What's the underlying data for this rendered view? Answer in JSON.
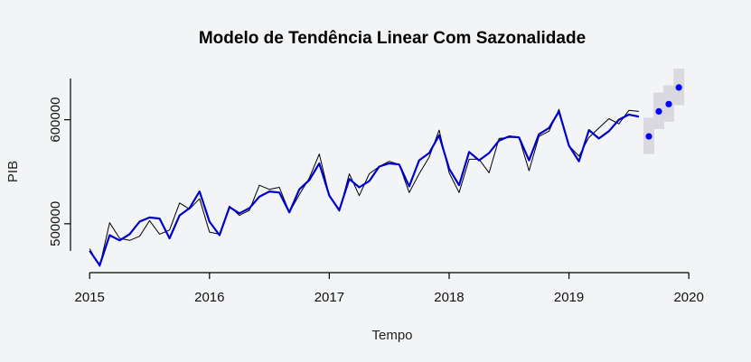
{
  "chart_data": {
    "type": "line",
    "title": "Modelo de Tendência Linear Com Sazonalidade",
    "xlabel": "Tempo",
    "ylabel": "PIB",
    "xlim": [
      2014.84,
      2020.21
    ],
    "ylim": [
      453000,
      650000
    ],
    "x_ticks": [
      2015,
      2016,
      2017,
      2018,
      2019,
      2020
    ],
    "x_tick_labels": [
      "2015",
      "2016",
      "2017",
      "2018",
      "2019",
      "2020"
    ],
    "y_ticks": [
      500000,
      600000
    ],
    "y_tick_labels": [
      "500000",
      "600000"
    ],
    "grid": false,
    "colors": {
      "observed": "#000000",
      "fitted": "#0000cc",
      "forecast_point": "#0000ff",
      "interval": "#d9d9df",
      "background": "#f3f4f6"
    },
    "series": [
      {
        "role": "observed",
        "x_start": 2015.0,
        "step": 0.0833333,
        "values": [
          476000,
          459000,
          501000,
          486000,
          484000,
          488000,
          503000,
          490000,
          494000,
          520000,
          514000,
          524000,
          492000,
          490000,
          517000,
          508000,
          513000,
          537000,
          533000,
          535000,
          511000,
          528000,
          544000,
          567000,
          527000,
          512000,
          548000,
          527000,
          548000,
          555000,
          560000,
          557000,
          530000,
          548000,
          564000,
          590000,
          549000,
          530000,
          562000,
          562000,
          549000,
          582000,
          583000,
          583000,
          551000,
          584000,
          589000,
          610000,
          575000,
          565000,
          583000,
          592000,
          601000,
          596000,
          609000,
          608000
        ]
      },
      {
        "role": "fitted",
        "x_start": 2015.0,
        "step": 0.0833333,
        "values": [
          474000,
          460000,
          489000,
          484000,
          490000,
          502000,
          506000,
          505000,
          486000,
          508000,
          515000,
          531000,
          502000,
          489000,
          516000,
          510000,
          515000,
          526000,
          531000,
          530000,
          511000,
          533000,
          542000,
          558000,
          527000,
          513000,
          543000,
          535000,
          541000,
          555000,
          558000,
          557000,
          536000,
          561000,
          568000,
          585000,
          553000,
          537000,
          569000,
          561000,
          568000,
          580000,
          584000,
          583000,
          561000,
          586000,
          592000,
          608000,
          575000,
          560000,
          590000,
          582000,
          589000,
          600000,
          605000,
          603000
        ]
      }
    ],
    "forecast": {
      "x": [
        2019.667,
        2019.75,
        2019.833,
        2019.917
      ],
      "values": [
        584000,
        608000,
        615000,
        631000
      ],
      "lower": [
        567000,
        591000,
        598000,
        614000
      ],
      "upper": [
        602000,
        626000,
        633000,
        649000
      ]
    }
  }
}
